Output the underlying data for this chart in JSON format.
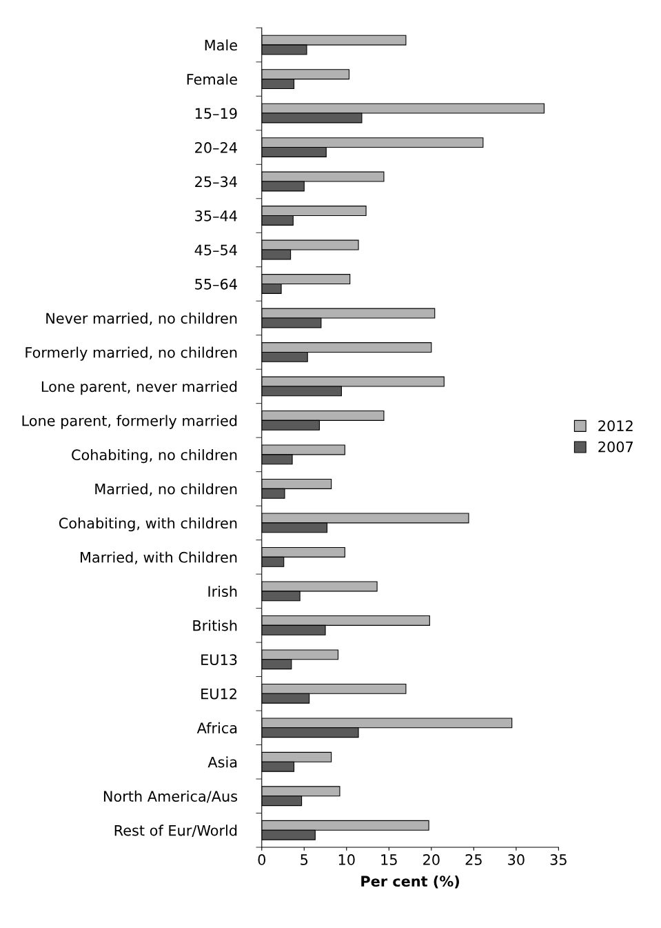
{
  "chart_data": {
    "type": "bar",
    "orientation": "horizontal",
    "xlabel": "Per cent (%)",
    "categories": [
      "Male",
      "Female",
      "15–19",
      "20–24",
      "25–34",
      "35–44",
      "45–54",
      "55–64",
      "Never married, no children",
      "Formerly married, no children",
      "Lone parent, never married",
      "Lone parent, formerly married",
      "Cohabiting, no children",
      "Married, no children",
      "Cohabiting, with children",
      "Married, with Children",
      "Irish",
      "British",
      "EU13",
      "EU12",
      "Africa",
      "Asia",
      "North America/Aus",
      "Rest of Eur/World"
    ],
    "series": [
      {
        "name": "2012",
        "color": "#b2b2b2",
        "values": [
          17.0,
          10.3,
          33.3,
          26.1,
          14.4,
          12.3,
          11.4,
          10.4,
          20.4,
          20.0,
          21.5,
          14.4,
          9.8,
          8.2,
          24.4,
          9.8,
          13.6,
          19.8,
          9.0,
          17.0,
          29.5,
          8.2,
          9.2,
          19.7
        ]
      },
      {
        "name": "2007",
        "color": "#5a5a5a",
        "values": [
          5.3,
          3.8,
          11.8,
          7.6,
          5.0,
          3.7,
          3.4,
          2.3,
          7.0,
          5.4,
          9.4,
          6.8,
          3.6,
          2.7,
          7.7,
          2.6,
          4.5,
          7.5,
          3.5,
          5.6,
          11.4,
          3.8,
          4.7,
          6.3
        ]
      }
    ],
    "xlim": [
      0,
      35
    ],
    "xticks": [
      0,
      5,
      10,
      15,
      20,
      25,
      30,
      35
    ],
    "grid": false,
    "legend": "right"
  }
}
